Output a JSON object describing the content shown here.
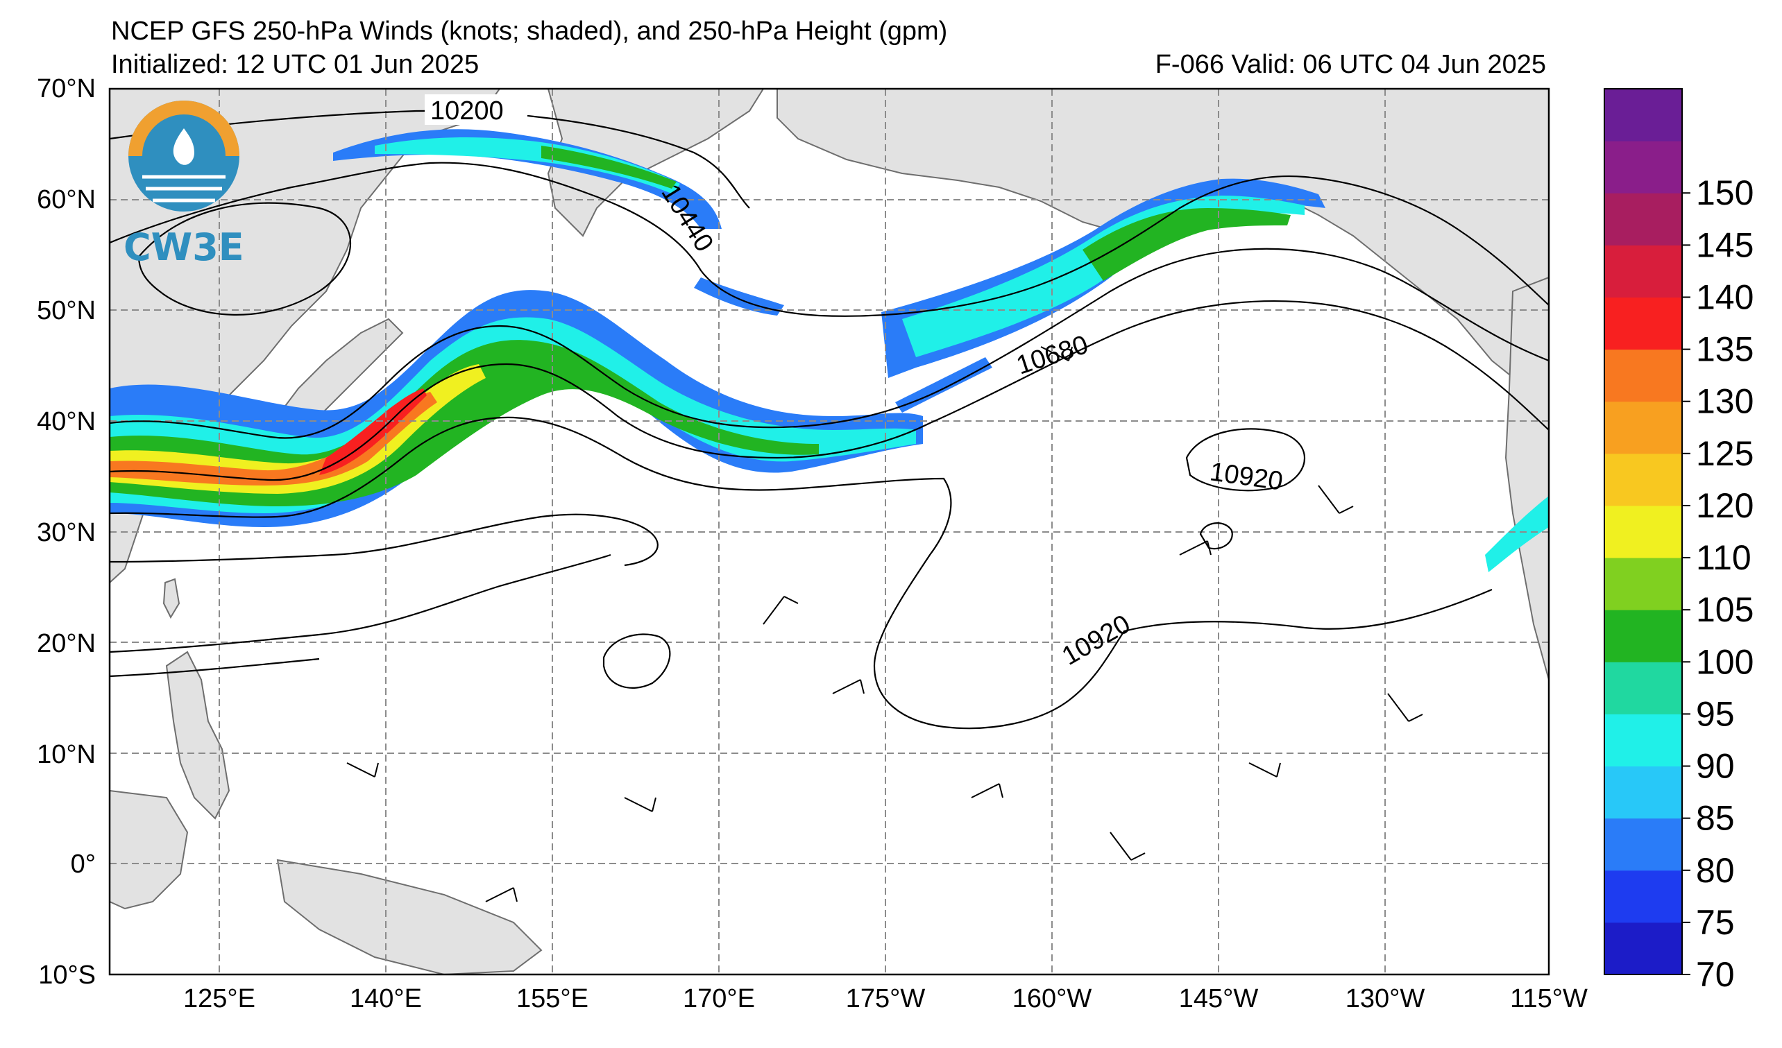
{
  "header": {
    "title": "NCEP GFS 250-hPa Winds (knots; shaded), and 250-hPa Height (gpm)",
    "initialized": "Initialized: 12 UTC 01 Jun 2025",
    "valid": "F-066  Valid: 06 UTC 04 Jun 2025"
  },
  "logo": {
    "text": "CW3E"
  },
  "axes": {
    "lat_labels": [
      "70°N",
      "60°N",
      "50°N",
      "40°N",
      "30°N",
      "20°N",
      "10°N",
      "0°",
      "10°S"
    ],
    "lon_labels": [
      "125°E",
      "140°E",
      "155°E",
      "170°E",
      "175°W",
      "160°W",
      "145°W",
      "130°W",
      "115°W"
    ]
  },
  "colorbar": {
    "labels": [
      "70",
      "75",
      "80",
      "85",
      "90",
      "95",
      "100",
      "105",
      "110",
      "120",
      "125",
      "130",
      "135",
      "140",
      "145",
      "150"
    ],
    "colors": [
      "#1c1cc8",
      "#1e3cf0",
      "#2a7cf8",
      "#28c8f8",
      "#20f0e8",
      "#20d8a0",
      "#22b422",
      "#80d020",
      "#f0f020",
      "#f8c820",
      "#f8a020",
      "#f87820",
      "#f82020",
      "#d81e3c",
      "#a81e60",
      "#8a1e8a",
      "#6a1e96"
    ]
  },
  "contour_labels": {
    "c10200": "10200",
    "c10440": "10440",
    "c10680": "10680",
    "c10920a": "10920",
    "c10920b": "10920"
  },
  "colors": {
    "land": "#e2e2e2",
    "coast": "#6e6e6e",
    "grid": "#8c8c8c",
    "contour": "#000000"
  }
}
